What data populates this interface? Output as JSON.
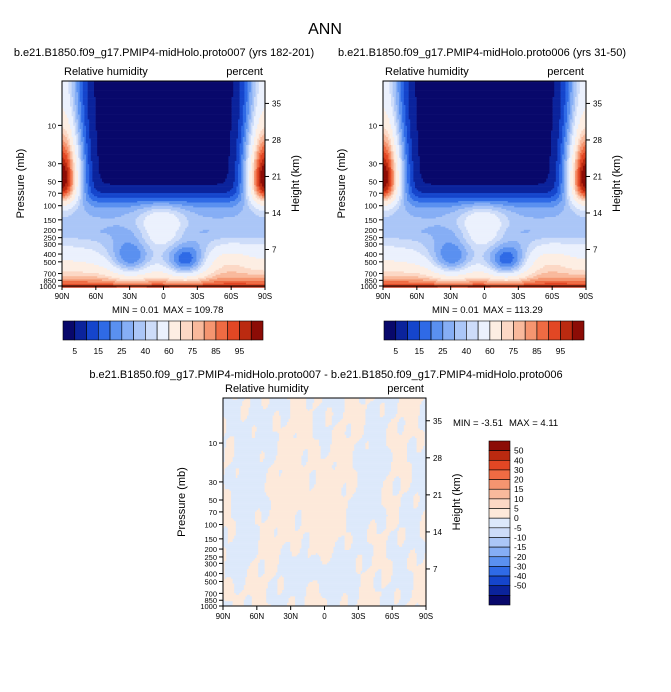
{
  "page_title": "ANN",
  "palette": {
    "abs": [
      "#08086b",
      "#0b239c",
      "#1545cc",
      "#2f6ae6",
      "#5a90f0",
      "#86aef5",
      "#abc6f7",
      "#cddcf9",
      "#ebf1fd",
      "#fdeee3",
      "#fcd8c5",
      "#f9b99c",
      "#f59570",
      "#ef6b43",
      "#e24724",
      "#bb2a10",
      "#8c0c06"
    ],
    "diff": [
      "#08086b",
      "#0b239c",
      "#1545cc",
      "#2f6ae6",
      "#5a90f0",
      "#86aef5",
      "#abc6f7",
      "#cddcf9",
      "#dde9fb",
      "#fde9da",
      "#fcd8c5",
      "#f9b99c",
      "#f59570",
      "#ef6b43",
      "#e24724",
      "#bb2a10",
      "#8c0c06"
    ]
  },
  "chart_data": [
    {
      "type": "heatmap",
      "id": "panel-a",
      "title": "b.e21.B1850.f09_g17.PMIP4-midHolo.proto007 (yrs 182-201)",
      "variable": "Relative humidity",
      "units": "percent",
      "xlabel": "",
      "ylabel": "Pressure (mb)",
      "y2label": "Height (km)",
      "x_ticks": [
        "90N",
        "60N",
        "30N",
        "0",
        "30S",
        "60S",
        "90S"
      ],
      "y_ticks": [
        "10",
        "30",
        "50",
        "70",
        "100",
        "150",
        "200",
        "250",
        "300",
        "400",
        "500",
        "700",
        "850",
        "1000"
      ],
      "y2_ticks": [
        "35",
        "28",
        "21",
        "14",
        "7"
      ],
      "min_label": "MIN =  0.01",
      "max_label": "MAX = 109.78",
      "min": 0.01,
      "max": 109.78,
      "field": "relhum_ctrl"
    },
    {
      "type": "heatmap",
      "id": "panel-b",
      "title": "b.e21.B1850.f09_g17.PMIP4-midHolo.proto006 (yrs 31-50)",
      "variable": "Relative humidity",
      "units": "percent",
      "xlabel": "",
      "ylabel": "Pressure (mb)",
      "y2label": "Height (km)",
      "x_ticks": [
        "90N",
        "60N",
        "30N",
        "0",
        "30S",
        "60S",
        "90S"
      ],
      "y_ticks": [
        "10",
        "30",
        "50",
        "70",
        "100",
        "150",
        "200",
        "250",
        "300",
        "400",
        "500",
        "700",
        "850",
        "1000"
      ],
      "y2_ticks": [
        "35",
        "28",
        "21",
        "14",
        "7"
      ],
      "min_label": "MIN =  0.01",
      "max_label": "MAX = 113.29",
      "min": 0.01,
      "max": 113.29,
      "field": "relhum_ctrl"
    },
    {
      "type": "heatmap",
      "id": "panel-diff",
      "title": "b.e21.B1850.f09_g17.PMIP4-midHolo.proto007 - b.e21.B1850.f09_g17.PMIP4-midHolo.proto006",
      "variable": "Relative humidity",
      "units": "percent",
      "xlabel": "",
      "ylabel": "Pressure (mb)",
      "y2label": "Height (km)",
      "x_ticks": [
        "90N",
        "60N",
        "30N",
        "0",
        "30S",
        "60S",
        "90S"
      ],
      "y_ticks": [
        "10",
        "30",
        "50",
        "70",
        "100",
        "150",
        "200",
        "250",
        "300",
        "400",
        "500",
        "700",
        "850",
        "1000"
      ],
      "y2_ticks": [
        "35",
        "28",
        "21",
        "14",
        "7"
      ],
      "min_label": "MIN = -3.51",
      "max_label": "MAX =  4.11",
      "min": -3.51,
      "max": 4.11,
      "field": "relhum_diff"
    }
  ],
  "colorbar_abs": {
    "levels": [
      5,
      10,
      15,
      20,
      25,
      30,
      35,
      40,
      50,
      60,
      65,
      70,
      75,
      80,
      85,
      90,
      95
    ],
    "labels": [
      "5",
      "15",
      "25",
      "40",
      "60",
      "75",
      "85",
      "95"
    ]
  },
  "colorbar_diff": {
    "levels": [
      50,
      40,
      30,
      20,
      15,
      10,
      5,
      0,
      -5,
      -10,
      -15,
      -20,
      -30,
      -40,
      -50
    ],
    "labels": [
      "50",
      "40",
      "30",
      "20",
      "15",
      "10",
      "5",
      "0",
      "-5",
      "-10",
      "-15",
      "-20",
      "-30",
      "-40",
      "-50"
    ]
  }
}
